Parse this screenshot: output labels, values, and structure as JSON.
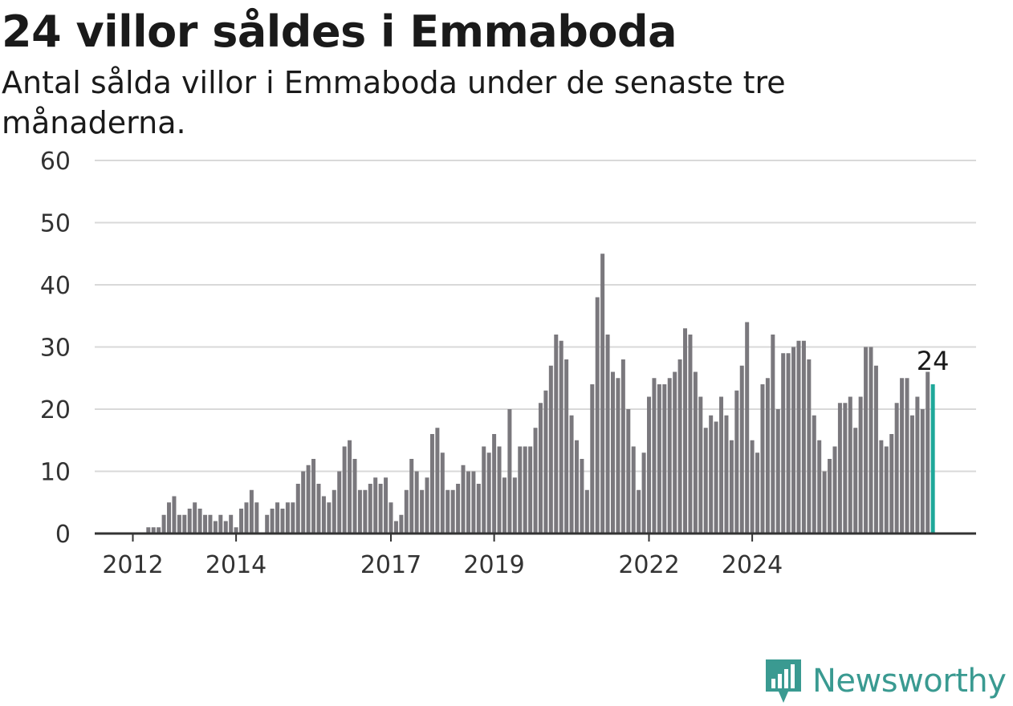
{
  "title": "24 villor såldes i Emmaboda",
  "subtitle": "Antal sålda villor i Emmaboda under de senaste tre månaderna.",
  "brand": {
    "name": "Newsworthy",
    "icon": "newsworthy-logo-icon",
    "color": "#3a9a91"
  },
  "colors": {
    "bar": "#7a787d",
    "highlight": "#1fa89a",
    "grid": "#d9d9d9",
    "axis": "#333333"
  },
  "chart_data": {
    "type": "bar",
    "ylim": [
      0,
      60
    ],
    "yticks": [
      "0",
      "10",
      "20",
      "30",
      "40",
      "50",
      "60"
    ],
    "xticks": [
      {
        "label": "2012",
        "index": 7
      },
      {
        "label": "2014",
        "index": 27
      },
      {
        "label": "2017",
        "index": 57
      },
      {
        "label": "2019",
        "index": 77
      },
      {
        "label": "2022",
        "index": 107
      },
      {
        "label": "2024",
        "index": 127
      }
    ],
    "values": [
      0,
      0,
      0,
      0,
      0,
      0,
      0,
      0,
      0,
      0,
      1,
      1,
      1,
      3,
      5,
      6,
      3,
      3,
      4,
      5,
      4,
      3,
      3,
      2,
      3,
      2,
      3,
      1,
      4,
      5,
      7,
      5,
      0,
      3,
      4,
      5,
      4,
      5,
      5,
      8,
      10,
      11,
      12,
      8,
      6,
      5,
      7,
      10,
      14,
      15,
      12,
      7,
      7,
      8,
      9,
      8,
      9,
      5,
      2,
      3,
      7,
      12,
      10,
      7,
      9,
      16,
      17,
      13,
      7,
      7,
      8,
      11,
      10,
      10,
      8,
      14,
      13,
      16,
      14,
      9,
      20,
      9,
      14,
      14,
      14,
      17,
      21,
      23,
      27,
      32,
      31,
      28,
      19,
      15,
      12,
      7,
      24,
      38,
      45,
      32,
      26,
      25,
      28,
      20,
      14,
      7,
      13,
      22,
      25,
      24,
      24,
      25,
      26,
      28,
      33,
      32,
      26,
      22,
      17,
      19,
      18,
      22,
      19,
      15,
      23,
      27,
      34,
      15,
      13,
      24,
      25,
      32,
      20,
      29,
      29,
      30,
      31,
      31,
      28,
      19,
      15,
      10,
      12,
      14,
      21,
      21,
      22,
      17,
      22,
      30,
      30,
      27,
      15,
      14,
      16,
      21,
      25,
      25,
      19,
      22,
      20,
      26,
      24
    ],
    "highlight_last": true,
    "last_label": "24"
  }
}
